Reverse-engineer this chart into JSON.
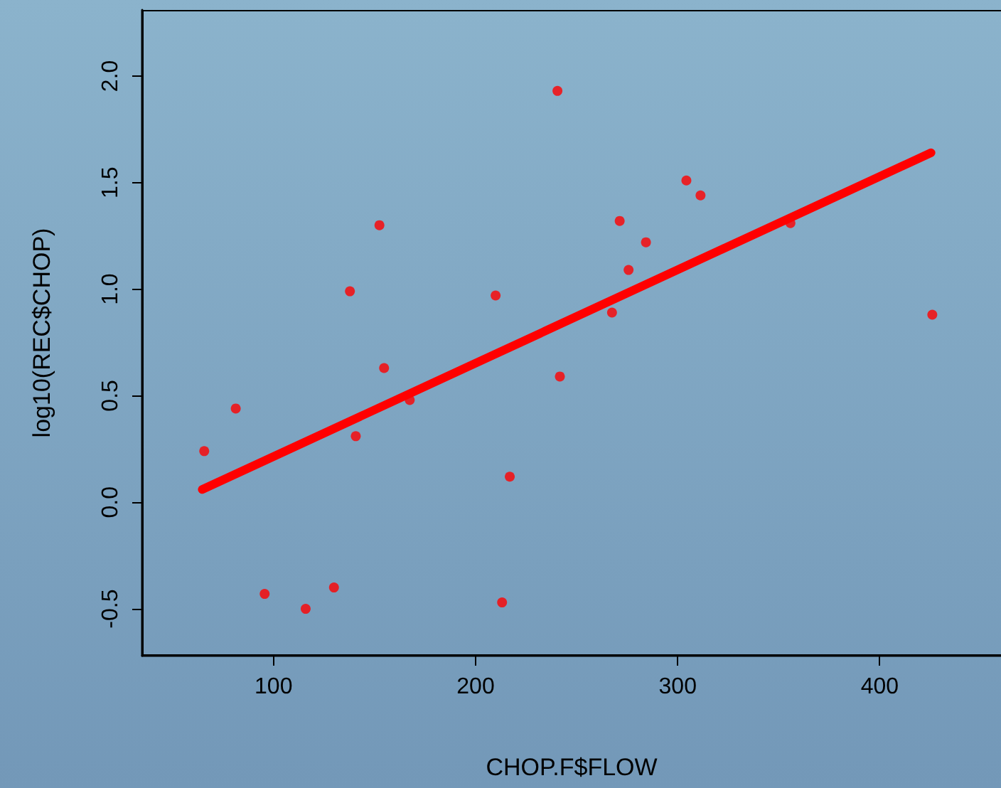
{
  "chart_data": {
    "type": "scatter",
    "xlabel": "CHOP.F$FLOW",
    "ylabel": "log10(REC$CHOP)",
    "xlim": [
      35,
      460
    ],
    "ylim": [
      -0.72,
      2.31
    ],
    "xticks": [
      100,
      200,
      300,
      400
    ],
    "yticks": [
      -0.5,
      {
        "value": 0,
        "label": "0.0"
      },
      0.5,
      {
        "value": 1,
        "label": "1.0"
      },
      1.5,
      {
        "value": 2,
        "label": "2.0"
      }
    ],
    "grid": false,
    "series": [
      {
        "marker": "circle",
        "color": "#ff0000",
        "x": [
          65.7,
          81.3,
          95.6,
          115.9,
          129.9,
          137.8,
          140.7,
          152.4,
          154.7,
          167.4,
          209.9,
          213.1,
          216.9,
          240.5,
          241.7,
          267.5,
          271.3,
          275.7,
          284.3,
          304.3,
          311.3,
          355.8,
          426.0
        ],
        "values": [
          0.24,
          0.44,
          -0.43,
          -0.5,
          -0.4,
          0.99,
          0.31,
          1.3,
          0.63,
          0.48,
          0.97,
          -0.47,
          0.12,
          1.93,
          0.59,
          0.89,
          1.32,
          1.09,
          1.22,
          1.51,
          1.44,
          1.31,
          0.88
        ]
      },
      {
        "type": "line",
        "color": "#ff0000",
        "x": [
          64.7,
          425.4
        ],
        "values": [
          0.06,
          1.64
        ]
      }
    ]
  }
}
